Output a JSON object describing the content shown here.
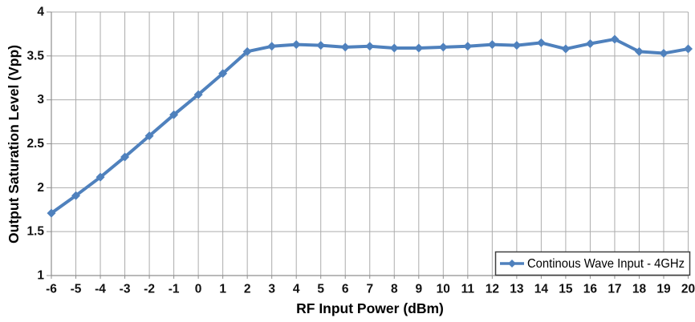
{
  "chart_data": {
    "type": "line",
    "title": "",
    "xlabel": "RF Input Power (dBm)",
    "ylabel": "Output Saturation Level (Vpp)",
    "x": [
      -6,
      -5,
      -4,
      -3,
      -2,
      -1,
      0,
      1,
      2,
      3,
      4,
      5,
      6,
      7,
      8,
      9,
      10,
      11,
      12,
      13,
      14,
      15,
      16,
      17,
      18,
      19,
      20
    ],
    "series": [
      {
        "name": "Continous Wave Input - 4GHz",
        "marker": "diamond",
        "color": "#4F81BD",
        "line_width": 4,
        "values": [
          1.71,
          1.91,
          2.12,
          2.35,
          2.59,
          2.83,
          3.06,
          3.3,
          3.55,
          3.61,
          3.63,
          3.62,
          3.6,
          3.61,
          3.59,
          3.59,
          3.6,
          3.61,
          3.63,
          3.62,
          3.65,
          3.58,
          3.64,
          3.69,
          3.55,
          3.53,
          3.58
        ]
      }
    ],
    "xlim": [
      -6,
      20
    ],
    "ylim": [
      1,
      4
    ],
    "xtick_step": 1,
    "ytick_step": 0.5,
    "xtick_labels": [
      "-6",
      "-5",
      "-4",
      "-3",
      "-2",
      "-1",
      "0",
      "1",
      "2",
      "3",
      "4",
      "5",
      "6",
      "7",
      "8",
      "9",
      "10",
      "11",
      "12",
      "13",
      "14",
      "15",
      "16",
      "17",
      "18",
      "19",
      "20"
    ],
    "ytick_labels": [
      "1",
      "1.5",
      "2",
      "2.5",
      "3",
      "3.5",
      "4"
    ],
    "grid": "both",
    "legend_position": "inside-bottom-right",
    "colors": {
      "line": "#4F81BD",
      "gridline": "#ACACAC",
      "axis": "#8F8F8F",
      "text": "#111111",
      "legend_border": "#3F3F3F",
      "background": "#FFFFFF"
    }
  }
}
